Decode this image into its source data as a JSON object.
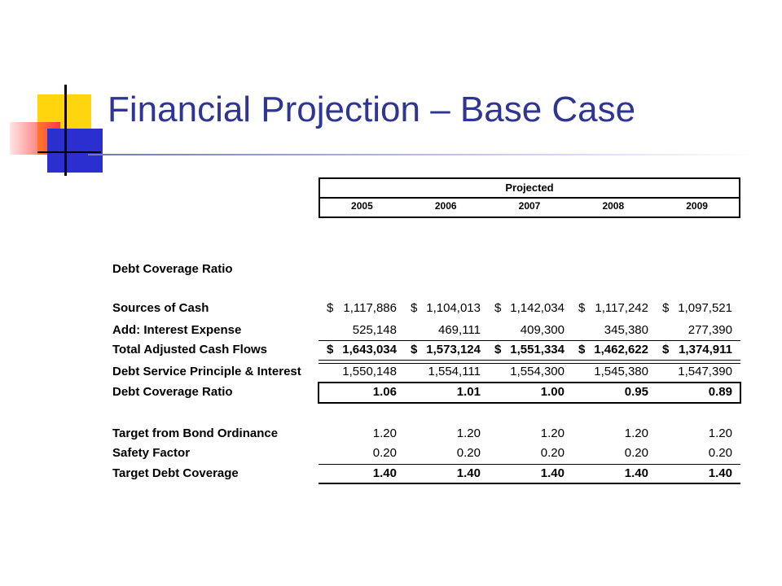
{
  "slide": {
    "title": "Financial Projection – Base Case"
  },
  "header": {
    "group_label": "Projected",
    "years": [
      "2005",
      "2006",
      "2007",
      "2008",
      "2009"
    ]
  },
  "section_label": "Debt Coverage Ratio",
  "rows": [
    {
      "label": "Sources of Cash",
      "dollar": "$",
      "values": [
        "1,117,886",
        "1,104,013",
        "1,142,034",
        "1,117,242",
        "1,097,521"
      ]
    },
    {
      "label": "Add: Interest Expense",
      "dollar": "",
      "values": [
        "525,148",
        "469,111",
        "409,300",
        "345,380",
        "277,390"
      ]
    },
    {
      "label": "Total Adjusted Cash Flows",
      "dollar": "$",
      "values": [
        "1,643,034",
        "1,573,124",
        "1,551,334",
        "1,462,622",
        "1,374,911"
      ]
    },
    {
      "label": "Debt Service Principle & Interest",
      "dollar": "",
      "values": [
        "1,550,148",
        "1,554,111",
        "1,554,300",
        "1,545,380",
        "1,547,390"
      ]
    },
    {
      "label": "Debt Coverage Ratio",
      "dollar": "",
      "values": [
        "1.06",
        "1.01",
        "1.00",
        "0.95",
        "0.89"
      ]
    },
    {
      "label": "Target from Bond Ordinance",
      "dollar": "",
      "values": [
        "1.20",
        "1.20",
        "1.20",
        "1.20",
        "1.20"
      ]
    },
    {
      "label": "Safety Factor",
      "dollar": "",
      "values": [
        "0.20",
        "0.20",
        "0.20",
        "0.20",
        "0.20"
      ]
    },
    {
      "label": "Target Debt Coverage",
      "dollar": "",
      "values": [
        "1.40",
        "1.40",
        "1.40",
        "1.40",
        "1.40"
      ]
    }
  ],
  "colors": {
    "title": "#2e3592",
    "accent_yellow": "#ffd400",
    "accent_blue": "#2b2fd0",
    "accent_red": "#ff3b3b"
  }
}
